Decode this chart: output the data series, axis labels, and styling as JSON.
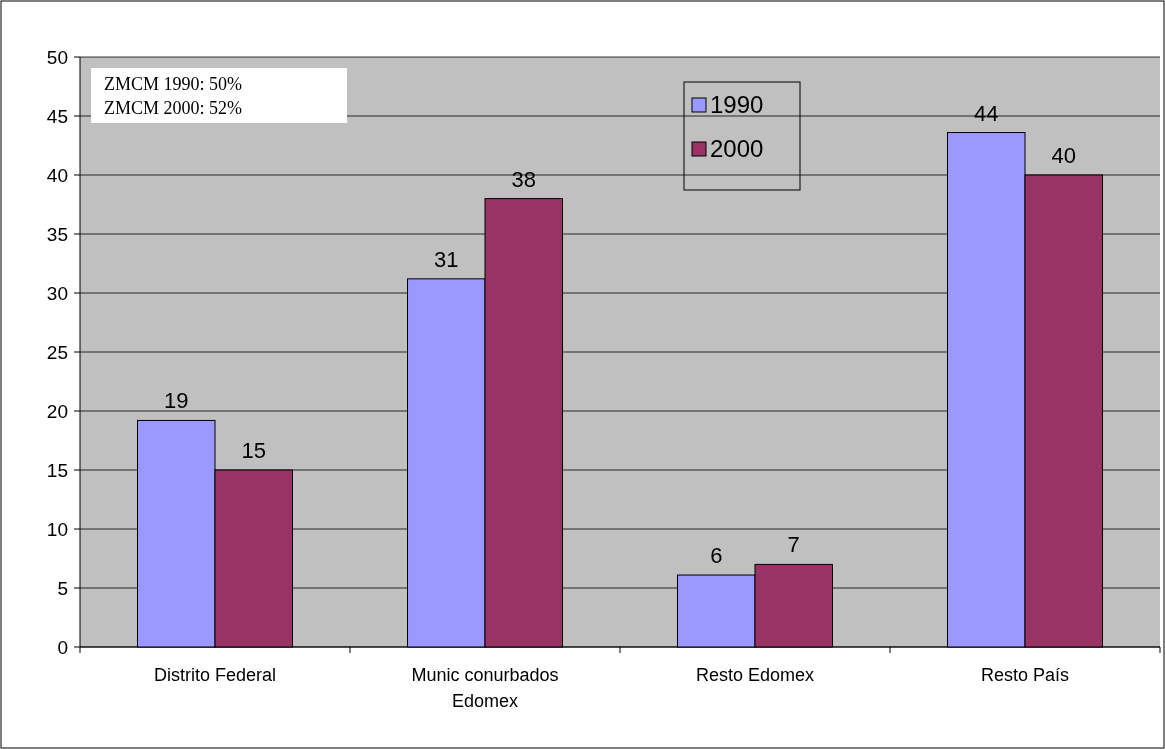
{
  "chart_data": {
    "type": "bar",
    "categories": [
      "Distrito Federal",
      "Munic conurbados Edomex",
      "Resto Edomex",
      "Resto País"
    ],
    "series": [
      {
        "name": "1990",
        "color": "#9999ff",
        "values": [
          19.2,
          31.2,
          6.1,
          43.6
        ],
        "value_labels": [
          "19",
          "31",
          "6",
          "44"
        ]
      },
      {
        "name": "2000",
        "color": "#993366",
        "values": [
          15,
          38,
          7,
          40
        ],
        "value_labels": [
          "15",
          "38",
          "7",
          "40"
        ]
      }
    ],
    "ylim": [
      0,
      50
    ],
    "yticks": [
      0,
      5,
      10,
      15,
      20,
      25,
      30,
      35,
      40,
      45,
      50
    ],
    "grid": "y",
    "legend": "top",
    "annotations": [
      "ZMCM 1990: 50%",
      "ZMCM 2000: 52%"
    ]
  }
}
